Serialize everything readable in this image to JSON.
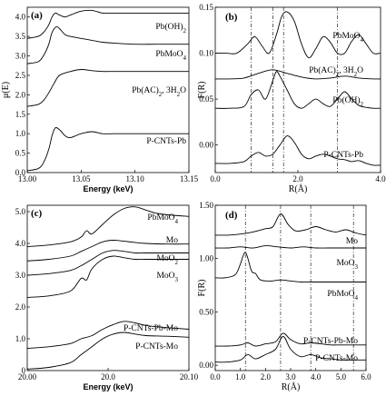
{
  "chart_data": [
    {
      "type": "line",
      "panel_label": "(a)",
      "xlabel": "Energy (keV)",
      "ylabel": "μ(E)",
      "xlim": [
        13.0,
        13.15
      ],
      "ylim": [
        0.0,
        4.25
      ],
      "x_ticks": [
        "13.00",
        "13.05",
        "13.10",
        "13.15"
      ],
      "y_ticks": [
        "0.0",
        "0.5",
        "1.0",
        "1.5",
        "2.0",
        "2.5",
        "3.0",
        "3.5",
        "4.0"
      ],
      "series": [
        {
          "name": "Pb(OH)2",
          "x": [
            13.0,
            13.01,
            13.015,
            13.02,
            13.023,
            13.026,
            13.03,
            13.035,
            13.04,
            13.05,
            13.06,
            13.07,
            13.08,
            13.1,
            13.12,
            13.15
          ],
          "values": [
            3.45,
            3.5,
            3.6,
            3.8,
            4.0,
            4.1,
            4.05,
            4.0,
            4.05,
            4.15,
            4.17,
            4.1,
            4.1,
            4.1,
            4.1,
            4.1
          ]
        },
        {
          "name": "PbMoO4",
          "x": [
            13.0,
            13.01,
            13.015,
            13.02,
            13.023,
            13.027,
            13.03,
            13.035,
            13.04,
            13.05,
            13.06,
            13.07,
            13.08,
            13.1,
            13.12,
            13.15
          ],
          "values": [
            2.8,
            2.85,
            3.0,
            3.3,
            3.6,
            3.75,
            3.7,
            3.55,
            3.5,
            3.45,
            3.4,
            3.35,
            3.33,
            3.3,
            3.3,
            3.3
          ]
        },
        {
          "name": "Pb(AC)2, 3H2O",
          "x": [
            13.0,
            13.01,
            13.015,
            13.02,
            13.025,
            13.03,
            13.04,
            13.05,
            13.06,
            13.07,
            13.08,
            13.1,
            13.12,
            13.15
          ],
          "values": [
            1.7,
            1.75,
            1.85,
            2.05,
            2.3,
            2.5,
            2.6,
            2.65,
            2.62,
            2.6,
            2.6,
            2.6,
            2.6,
            2.6
          ]
        },
        {
          "name": "P-CNTs-Pb",
          "x": [
            13.0,
            13.01,
            13.015,
            13.02,
            13.023,
            13.026,
            13.03,
            13.035,
            13.04,
            13.05,
            13.06,
            13.07,
            13.08,
            13.1,
            13.12,
            13.15
          ],
          "values": [
            0.05,
            0.1,
            0.25,
            0.6,
            0.95,
            1.15,
            1.1,
            0.95,
            0.9,
            1.0,
            1.05,
            1.0,
            1.0,
            1.0,
            1.0,
            1.0
          ]
        }
      ]
    },
    {
      "type": "line",
      "panel_label": "(b)",
      "xlabel": "R(Å)",
      "ylabel": "F(R)",
      "xlim": [
        0.0,
        4.6
      ],
      "ylim": [
        -0.03,
        0.15
      ],
      "x_ticks": [
        "0.0",
        "2.0",
        "4.0"
      ],
      "y_ticks": [
        "0.00",
        "0.05",
        "0.10",
        "0.15"
      ],
      "vertical_lines_x": [
        1.0,
        1.6,
        1.9,
        3.4
      ],
      "series": [
        {
          "name": "PbMoO4",
          "x": [
            0.0,
            0.3,
            0.6,
            0.9,
            1.1,
            1.3,
            1.5,
            1.7,
            1.85,
            2.0,
            2.2,
            2.4,
            2.6,
            2.8,
            3.0,
            3.2,
            3.4,
            3.6,
            3.8,
            4.0,
            4.2,
            4.4,
            4.6
          ],
          "values": [
            0.1,
            0.1,
            0.1,
            0.11,
            0.118,
            0.108,
            0.1,
            0.12,
            0.14,
            0.145,
            0.135,
            0.11,
            0.095,
            0.105,
            0.118,
            0.112,
            0.1,
            0.1,
            0.113,
            0.12,
            0.11,
            0.1,
            0.1
          ]
        },
        {
          "name": "Pb(AC)2, 3H2O",
          "x": [
            0.0,
            0.4,
            0.8,
            1.2,
            1.6,
            2.0,
            2.4,
            2.8,
            3.2,
            3.6,
            4.0,
            4.4,
            4.6
          ],
          "values": [
            0.072,
            0.072,
            0.073,
            0.078,
            0.082,
            0.078,
            0.074,
            0.072,
            0.073,
            0.075,
            0.073,
            0.072,
            0.072
          ]
        },
        {
          "name": "Pb(OH)2",
          "x": [
            0.0,
            0.4,
            0.8,
            1.0,
            1.2,
            1.4,
            1.6,
            1.7,
            1.8,
            2.0,
            2.2,
            2.4,
            2.6,
            2.8,
            3.0,
            3.2,
            3.4,
            3.6,
            3.8,
            4.0,
            4.2,
            4.4,
            4.6
          ],
          "values": [
            0.04,
            0.04,
            0.042,
            0.055,
            0.06,
            0.05,
            0.07,
            0.08,
            0.075,
            0.06,
            0.045,
            0.04,
            0.045,
            0.05,
            0.045,
            0.042,
            0.05,
            0.058,
            0.05,
            0.043,
            0.041,
            0.04,
            0.04
          ]
        },
        {
          "name": "P-CNTs-Pb",
          "x": [
            0.0,
            0.4,
            0.8,
            1.0,
            1.2,
            1.4,
            1.6,
            1.8,
            2.0,
            2.2,
            2.4,
            2.6,
            2.8,
            3.0,
            3.2,
            3.4,
            3.6,
            3.8,
            4.0,
            4.2,
            4.4,
            4.6
          ],
          "values": [
            -0.02,
            -0.02,
            -0.018,
            -0.012,
            -0.008,
            -0.012,
            -0.01,
            0.0,
            0.01,
            0.003,
            -0.01,
            -0.015,
            -0.012,
            -0.01,
            -0.012,
            -0.015,
            -0.016,
            -0.018,
            -0.017,
            -0.02,
            -0.022,
            -0.022
          ]
        }
      ]
    },
    {
      "type": "line",
      "panel_label": "(c)",
      "xlabel": "Energy (keV)",
      "ylabel": "",
      "xlim": [
        19.95,
        20.1
      ],
      "ylim": [
        0.0,
        5.2
      ],
      "x_ticks": [
        "20.00",
        "20.0",
        "20.10"
      ],
      "y_ticks": [
        "0",
        "1.0",
        "2.0",
        "3.0",
        "4.0",
        "5.0"
      ],
      "series": [
        {
          "name": "PbMoO4",
          "x": [
            19.95,
            19.97,
            19.99,
            20.0,
            20.005,
            20.01,
            20.02,
            20.03,
            20.04,
            20.05,
            20.06,
            20.07,
            20.08,
            20.1
          ],
          "values": [
            3.9,
            3.95,
            4.05,
            4.2,
            4.4,
            4.3,
            4.6,
            4.9,
            5.1,
            5.15,
            5.05,
            4.95,
            4.9,
            4.85
          ]
        },
        {
          "name": "Mo",
          "x": [
            19.95,
            19.97,
            19.99,
            20.0,
            20.01,
            20.02,
            20.03,
            20.04,
            20.05,
            20.06,
            20.08,
            20.1
          ],
          "values": [
            3.45,
            3.5,
            3.6,
            3.75,
            3.9,
            4.05,
            4.1,
            4.07,
            4.03,
            4.0,
            3.98,
            3.98
          ]
        },
        {
          "name": "MoO2",
          "x": [
            19.95,
            19.97,
            19.99,
            20.0,
            20.01,
            20.02,
            20.03,
            20.04,
            20.05,
            20.06,
            20.08,
            20.1
          ],
          "values": [
            3.0,
            3.05,
            3.15,
            3.3,
            3.5,
            3.7,
            3.78,
            3.75,
            3.7,
            3.7,
            3.7,
            3.7
          ]
        },
        {
          "name": "MoO3",
          "x": [
            19.95,
            19.97,
            19.99,
            20.0,
            20.005,
            20.01,
            20.02,
            20.03,
            20.04,
            20.05,
            20.06,
            20.08,
            20.1
          ],
          "values": [
            2.3,
            2.35,
            2.5,
            2.9,
            2.85,
            3.2,
            3.5,
            3.6,
            3.55,
            3.5,
            3.5,
            3.5,
            3.5
          ]
        },
        {
          "name": "P-CNTs-Pb-Mo",
          "x": [
            19.95,
            19.97,
            19.99,
            20.0,
            20.01,
            20.02,
            20.03,
            20.04,
            20.05,
            20.06,
            20.07,
            20.08,
            20.1
          ],
          "values": [
            0.7,
            0.75,
            0.85,
            1.0,
            1.1,
            1.3,
            1.45,
            1.55,
            1.5,
            1.42,
            1.38,
            1.35,
            1.3
          ]
        },
        {
          "name": "P-CNTs-Mo",
          "x": [
            19.95,
            19.97,
            19.99,
            20.0,
            20.01,
            20.02,
            20.03,
            20.04,
            20.05,
            20.06,
            20.08,
            20.1
          ],
          "values": [
            0.05,
            0.1,
            0.25,
            0.5,
            0.75,
            1.0,
            1.15,
            1.2,
            1.15,
            1.1,
            1.08,
            1.05
          ]
        }
      ]
    },
    {
      "type": "line",
      "panel_label": "(d)",
      "xlabel": "R(Å)",
      "ylabel": "F(R)",
      "xlim": [
        0.0,
        6.0
      ],
      "ylim": [
        -0.05,
        1.5
      ],
      "x_ticks": [
        "0.0",
        "1.0",
        "2.0",
        "3.0",
        "4.0",
        "5.0",
        "6.0"
      ],
      "y_ticks": [
        "0.00",
        "0.50",
        "1.00",
        "1.50"
      ],
      "vertical_lines_x": [
        1.2,
        2.6,
        3.8,
        5.5
      ],
      "series": [
        {
          "name": "Mo",
          "x": [
            0.0,
            0.5,
            1.0,
            1.5,
            2.0,
            2.3,
            2.6,
            2.9,
            3.2,
            3.6,
            4.0,
            4.4,
            4.8,
            5.2,
            5.6,
            6.0
          ],
          "values": [
            1.22,
            1.22,
            1.23,
            1.25,
            1.28,
            1.3,
            1.42,
            1.32,
            1.26,
            1.27,
            1.3,
            1.27,
            1.25,
            1.27,
            1.24,
            1.22
          ]
        },
        {
          "name": "MoO3",
          "x": [
            0.0,
            0.5,
            1.0,
            1.5,
            2.0,
            2.5,
            3.0,
            3.5,
            4.0,
            4.5,
            5.0,
            5.5,
            6.0
          ],
          "values": [
            1.1,
            1.1,
            1.11,
            1.1,
            1.12,
            1.11,
            1.1,
            1.11,
            1.1,
            1.1,
            1.1,
            1.1,
            1.1
          ]
        },
        {
          "name": "PbMoO4",
          "x": [
            0.0,
            0.4,
            0.8,
            1.0,
            1.1,
            1.2,
            1.3,
            1.45,
            1.6,
            1.8,
            2.2,
            2.6,
            3.0,
            3.4,
            3.8,
            4.2,
            4.6,
            5.0,
            5.5,
            6.0
          ],
          "values": [
            0.82,
            0.82,
            0.85,
            0.95,
            1.02,
            1.06,
            1.0,
            0.88,
            0.86,
            0.8,
            0.79,
            0.8,
            0.79,
            0.78,
            0.78,
            0.78,
            0.78,
            0.78,
            0.78,
            0.78
          ]
        },
        {
          "name": "P-CNTs-Pb-Mo",
          "x": [
            0.0,
            0.5,
            1.0,
            1.3,
            1.6,
            2.0,
            2.4,
            2.7,
            3.0,
            3.4,
            3.8,
            4.2,
            4.6,
            5.0,
            5.5,
            6.0
          ],
          "values": [
            0.18,
            0.18,
            0.19,
            0.21,
            0.18,
            0.2,
            0.22,
            0.3,
            0.24,
            0.2,
            0.21,
            0.2,
            0.19,
            0.19,
            0.19,
            0.19
          ]
        },
        {
          "name": "P-CNTs-Mo",
          "x": [
            0.0,
            0.5,
            1.0,
            1.3,
            1.6,
            2.0,
            2.4,
            2.7,
            3.0,
            3.4,
            3.8,
            4.2,
            4.6,
            5.0,
            5.5,
            6.0
          ],
          "values": [
            0.03,
            0.03,
            0.05,
            0.1,
            0.06,
            0.1,
            0.15,
            0.27,
            0.15,
            0.08,
            0.1,
            0.07,
            0.06,
            0.05,
            0.05,
            0.05
          ]
        }
      ]
    }
  ]
}
